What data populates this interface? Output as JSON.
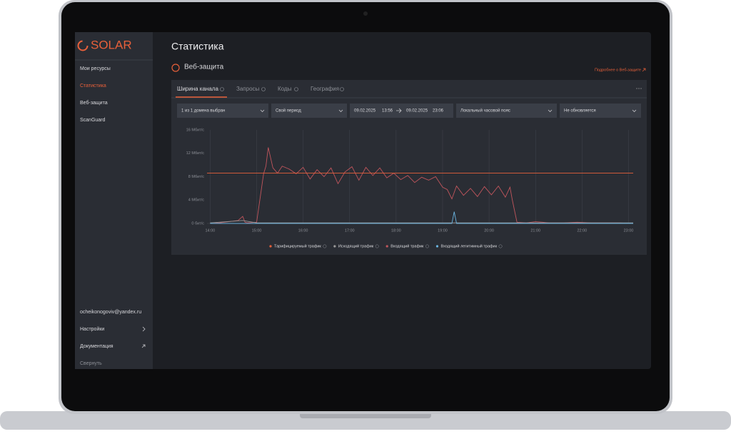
{
  "brand": "SOLAR",
  "sidebar": {
    "nav": [
      "Мои ресурсы",
      "Статистика",
      "Веб-защита",
      "ScanGuard"
    ],
    "email": "ocheikonogoviv@yandex.ru",
    "bottom": [
      "Настройки",
      "Документация"
    ],
    "collapse": "Свернуть"
  },
  "header": {
    "title": "Статистика"
  },
  "section": {
    "title": "Веб-защита",
    "link": "Подробнее о Веб-защите"
  },
  "tabs": [
    "Ширина канала",
    "Запросы",
    "Коды",
    "География"
  ],
  "filters": {
    "domains": "1 из 1 домена выбран",
    "period": "Свой период",
    "date_from": "09.02.2025",
    "time_from": "13:56",
    "date_to": "09.02.2025",
    "time_to": "23:06",
    "timezone": "Локальный часовой пояс",
    "refresh": "Не обновляется"
  },
  "chart_data": {
    "type": "line",
    "x": [
      14.0,
      14.2,
      14.4,
      14.6,
      14.7,
      14.75,
      14.8,
      15.0,
      15.15,
      15.2,
      15.25,
      15.35,
      15.45,
      15.55,
      15.7,
      15.85,
      16.0,
      16.15,
      16.3,
      16.45,
      16.6,
      16.75,
      16.9,
      17.05,
      17.2,
      17.35,
      17.5,
      17.65,
      17.8,
      17.95,
      18.1,
      18.25,
      18.4,
      18.55,
      18.7,
      18.85,
      19.0,
      19.1,
      19.2,
      19.3,
      19.45,
      19.6,
      19.75,
      19.9,
      20.05,
      20.2,
      20.35,
      20.45,
      20.5,
      20.6,
      20.8,
      21.0,
      21.3,
      21.6,
      21.9,
      22.2,
      22.5,
      22.8,
      23.1
    ],
    "series": [
      {
        "name": "Тарифицируемый трафик",
        "color": "#e8603a",
        "x": [
          13.933,
          23.1
        ],
        "values": [
          8.6,
          8.6
        ]
      },
      {
        "name": "Исходящий трафик",
        "color": "#9a9a9a",
        "x": [
          14.0,
          14.7,
          15.0,
          16.0,
          18.0,
          20.0,
          21.0,
          23.1
        ],
        "values": [
          0.1,
          0.5,
          0.1,
          0.1,
          0.1,
          0.1,
          0.1,
          0.1
        ]
      },
      {
        "name": "Входящий трафик",
        "color": "#c0555c",
        "values": [
          0,
          0.1,
          0.3,
          0.5,
          1.2,
          0.2,
          0.1,
          0.2,
          8.5,
          9.8,
          13,
          9.5,
          8.6,
          9.8,
          9.3,
          8.5,
          9.6,
          7.6,
          9.2,
          8.0,
          9.5,
          6.8,
          8.8,
          9.7,
          7.4,
          9.6,
          8.2,
          9.5,
          7.8,
          8.6,
          7.5,
          8.2,
          7.0,
          7.9,
          7.4,
          8.0,
          6.2,
          5.8,
          4.2,
          6.4,
          4.8,
          6.0,
          4.6,
          6.3,
          4.9,
          6.4,
          4.5,
          6.2,
          4.0,
          0.2,
          0.1,
          0.3,
          0.1,
          0.1,
          0.2,
          0.1,
          0.1,
          0.1,
          0
        ]
      },
      {
        "name": "Входящий легитимный трафик",
        "color": "#6ab4e0",
        "x": [
          14.0,
          19.2,
          19.25,
          19.3,
          23.1
        ],
        "values": [
          0,
          0,
          2.0,
          0,
          0
        ]
      }
    ],
    "xlim": [
      13.933,
      23.1
    ],
    "xticks": [
      {
        "value": 14,
        "label": "14:00"
      },
      {
        "value": 15,
        "label": "15:00"
      },
      {
        "value": 16,
        "label": "16:00"
      },
      {
        "value": 17,
        "label": "17:00"
      },
      {
        "value": 18,
        "label": "18:00"
      },
      {
        "value": 19,
        "label": "19:00"
      },
      {
        "value": 20,
        "label": "20:00"
      },
      {
        "value": 21,
        "label": "21:00"
      },
      {
        "value": 22,
        "label": "22:00"
      },
      {
        "value": 23,
        "label": "23:00"
      }
    ],
    "ylim": [
      0,
      16
    ],
    "yticks": [
      {
        "value": 0,
        "label": "0 бит/с"
      },
      {
        "value": 4,
        "label": "4 Мбит/с"
      },
      {
        "value": 8,
        "label": "8 Мбит/с"
      },
      {
        "value": 12,
        "label": "12 Мбит/с"
      },
      {
        "value": 16,
        "label": "16 Мбит/с"
      }
    ],
    "grid": true
  }
}
